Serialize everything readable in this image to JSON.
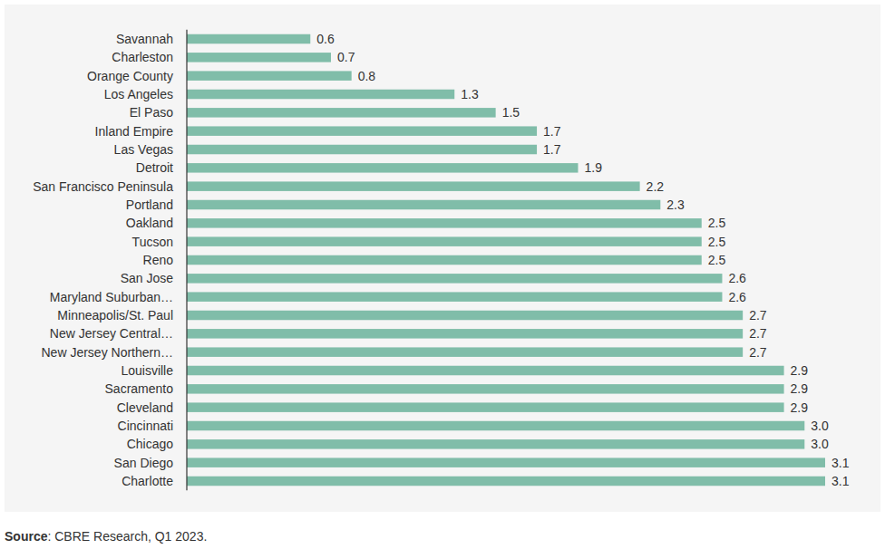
{
  "chart_data": {
    "type": "bar",
    "orientation": "horizontal",
    "categories": [
      "Savannah",
      "Charleston",
      "Orange County",
      "Los Angeles",
      "El Paso",
      "Inland Empire",
      "Las Vegas",
      "Detroit",
      "San Francisco Peninsula",
      "Portland",
      "Oakland",
      "Tucson",
      "Reno",
      "San Jose",
      "Maryland Suburban…",
      "Minneapolis/St. Paul",
      "New Jersey Central…",
      "New Jersey Northern…",
      "Louisville",
      "Sacramento",
      "Cleveland",
      "Cincinnati",
      "Chicago",
      "San Diego",
      "Charlotte"
    ],
    "values": [
      0.6,
      0.7,
      0.8,
      1.3,
      1.5,
      1.7,
      1.7,
      1.9,
      2.2,
      2.3,
      2.5,
      2.5,
      2.5,
      2.6,
      2.6,
      2.7,
      2.7,
      2.7,
      2.9,
      2.9,
      2.9,
      3.0,
      3.0,
      3.1,
      3.1
    ],
    "value_labels": [
      "0.6",
      "0.7",
      "0.8",
      "1.3",
      "1.5",
      "1.7",
      "1.7",
      "1.9",
      "2.2",
      "2.3",
      "2.5",
      "2.5",
      "2.5",
      "2.6",
      "2.6",
      "2.7",
      "2.7",
      "2.7",
      "2.9",
      "2.9",
      "2.9",
      "3.0",
      "3.0",
      "3.1",
      "3.1"
    ],
    "color": "#80bda9",
    "xlim": [
      0,
      3.1
    ],
    "tick_labels": false,
    "grid": false,
    "data_labels": true,
    "source": {
      "label": "Source",
      "text": ": CBRE Research, Q1 2023."
    }
  }
}
